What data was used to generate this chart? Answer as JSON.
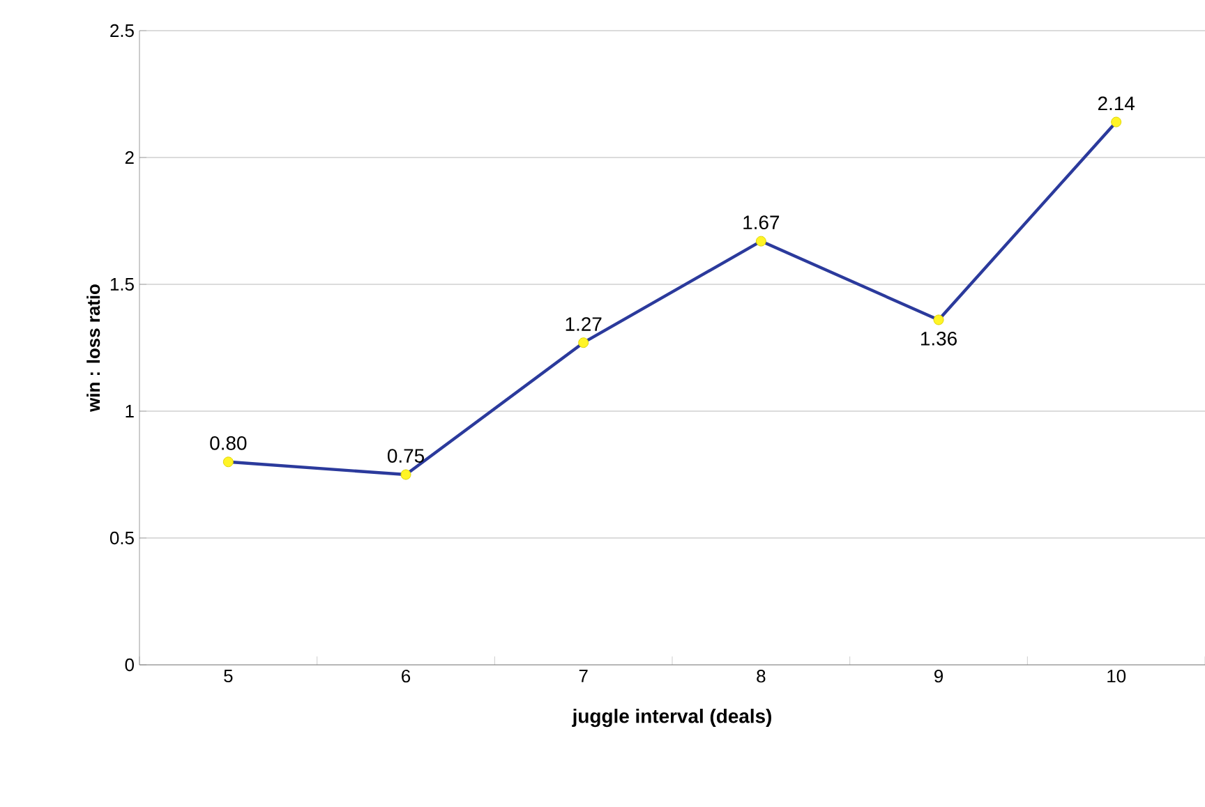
{
  "chart_data": {
    "type": "line",
    "xlabel": "juggle interval (deals)",
    "ylabel": "win : loss ratio",
    "categories": [
      "5",
      "6",
      "7",
      "8",
      "9",
      "10"
    ],
    "series": [
      {
        "color": "#2b3a9c",
        "values": [
          0.8,
          0.75,
          1.27,
          1.67,
          1.36,
          2.14
        ],
        "value_labels": [
          "0.80",
          "0.75",
          "1.27",
          "1.67",
          "1.36",
          "2.14"
        ]
      }
    ],
    "ylim": [
      0,
      2.5
    ],
    "yticks": [
      0,
      0.5,
      1,
      1.5,
      2,
      2.5
    ],
    "grid": "y",
    "marker": "circle",
    "line_style": "solid"
  }
}
